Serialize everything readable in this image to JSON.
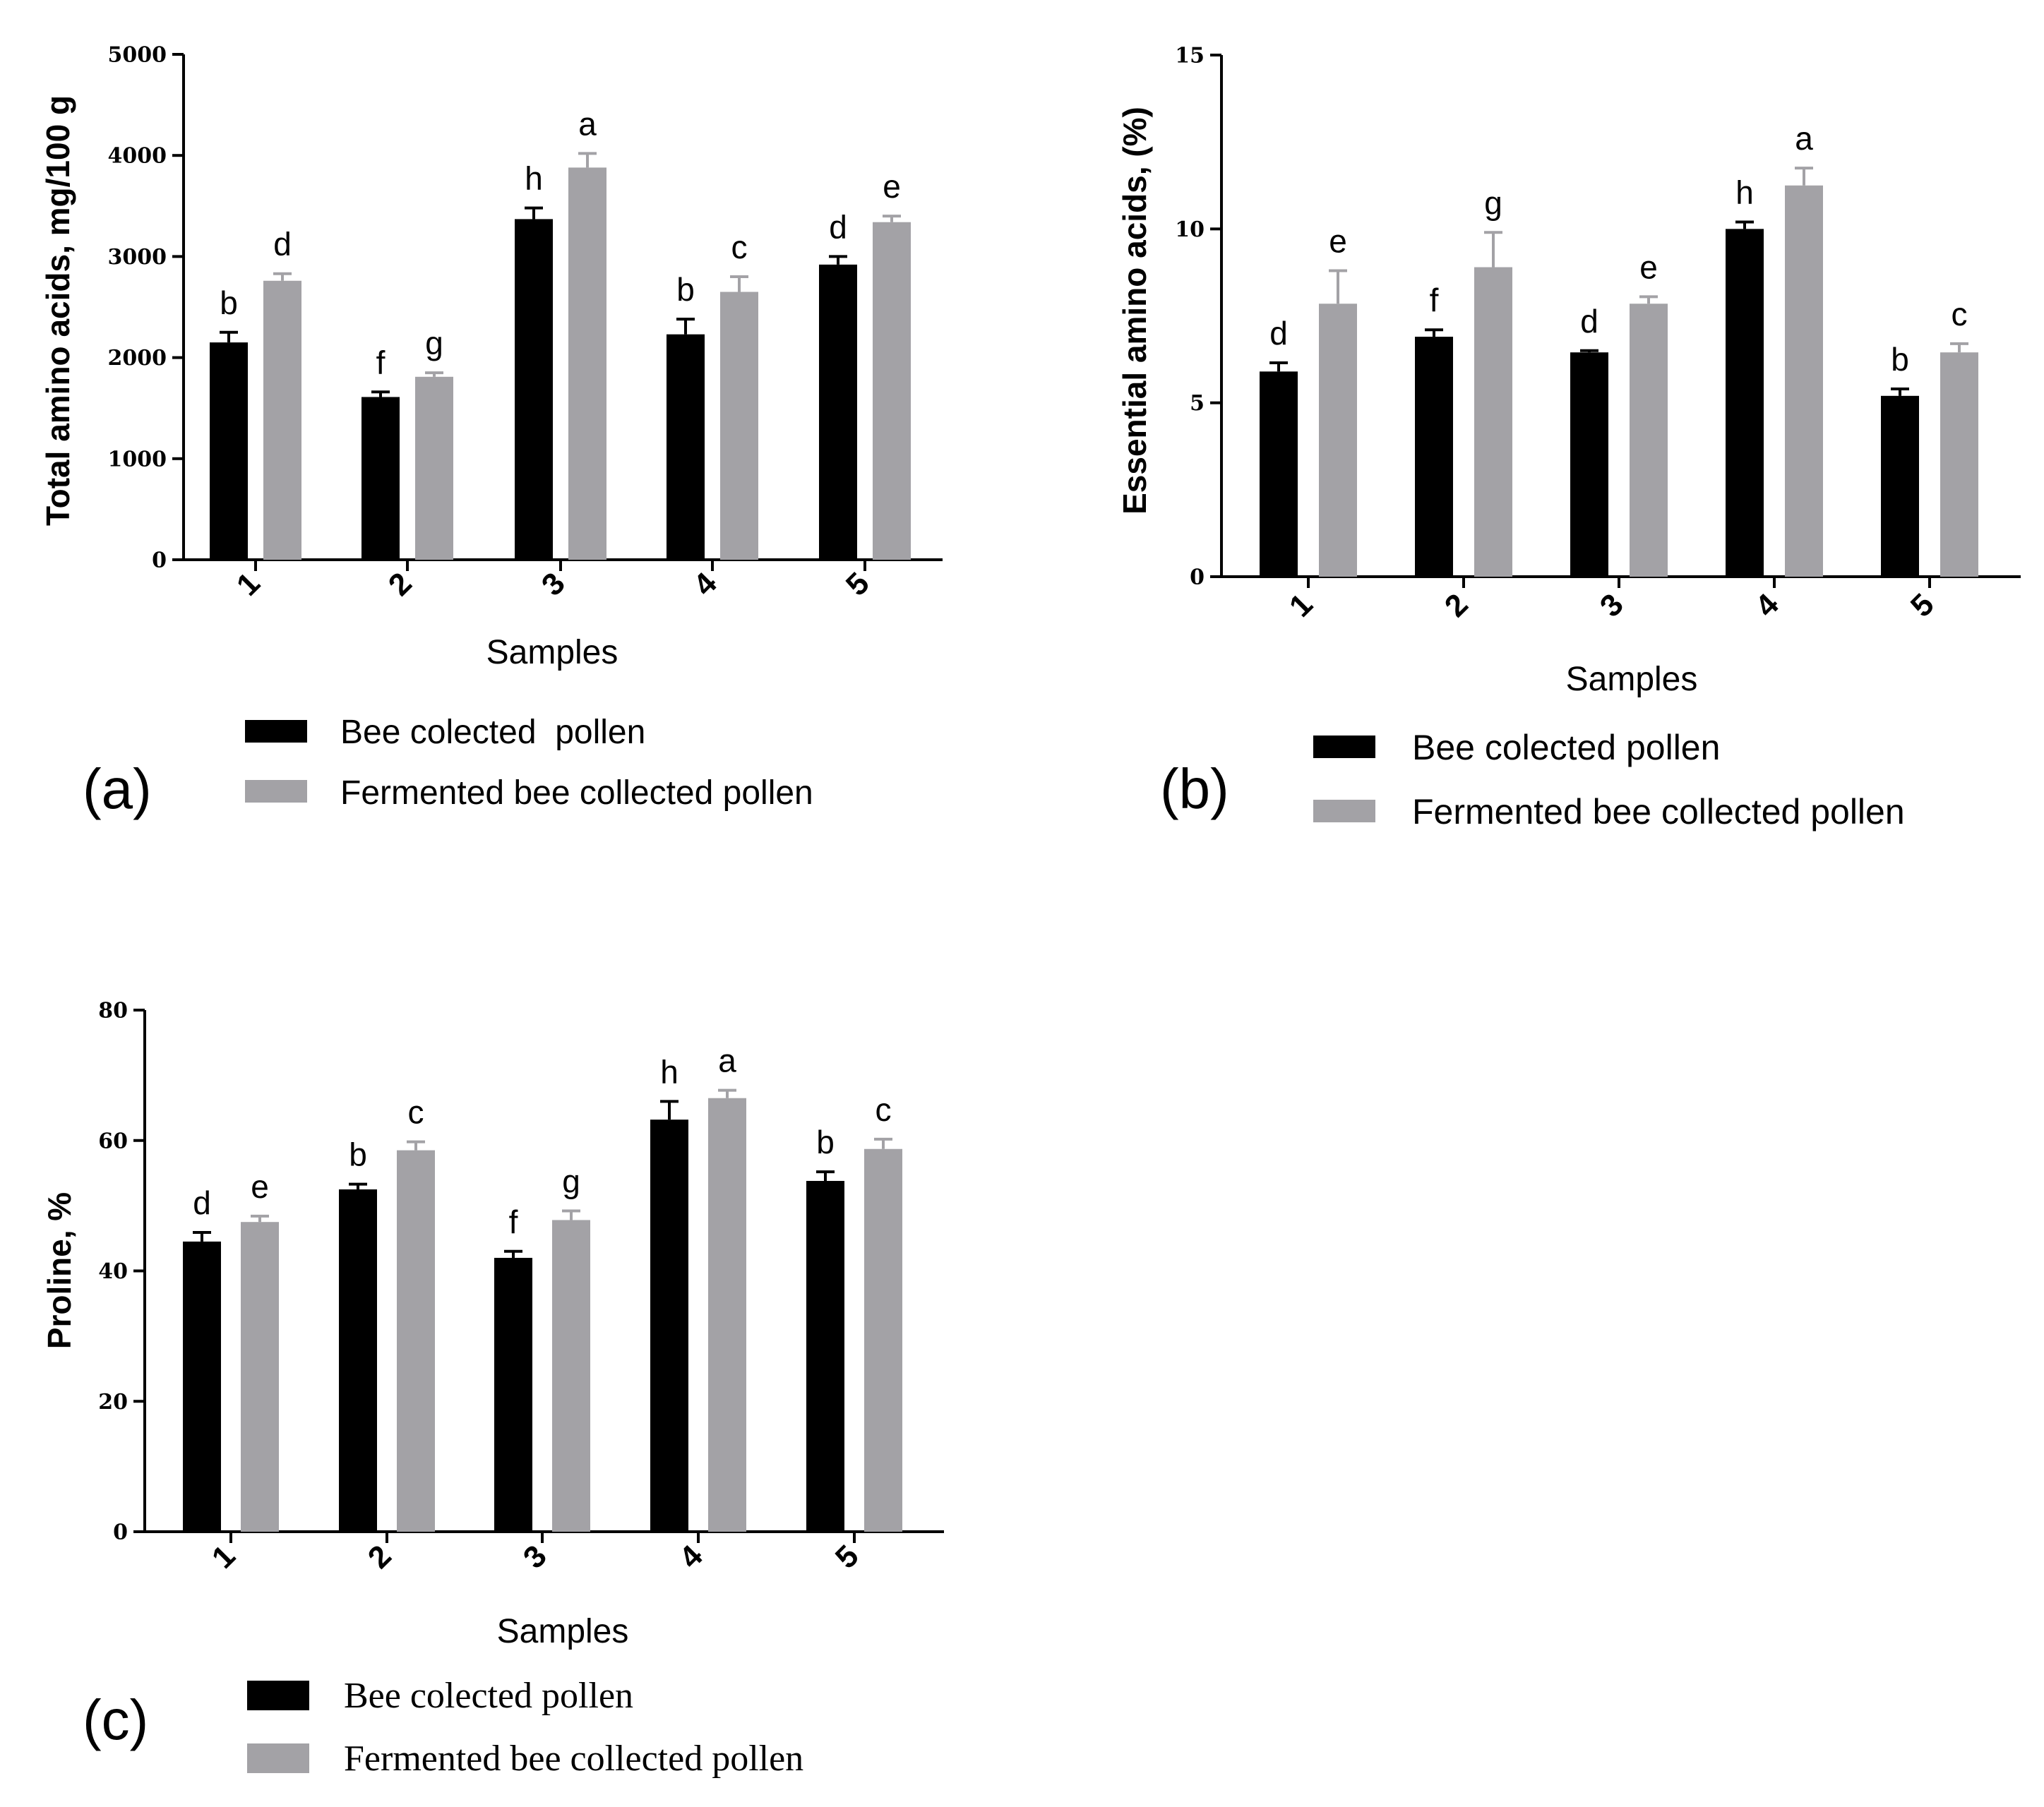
{
  "colors": {
    "bee": "#000000",
    "fermented": "#a3a2a6",
    "axis": "#000000"
  },
  "chart_data": [
    {
      "type": "bar",
      "panel_label": "(a)",
      "ylabel": "Total amino acids, mg/100 g",
      "xlabel": "Samples",
      "categories": [
        "1",
        "2",
        "3",
        "4",
        "5"
      ],
      "ylim": [
        0,
        5000
      ],
      "yticks": [
        0,
        1000,
        2000,
        3000,
        4000,
        5000
      ],
      "yticks_labels": [
        "0",
        "1000",
        "2000",
        "3000",
        "4000",
        "5000"
      ],
      "legend_position": "bottom",
      "grid": false,
      "series": [
        {
          "name": "Bee colected  pollen",
          "color_key": "bee",
          "values": [
            2150,
            1610,
            3370,
            2230,
            2920
          ],
          "errors": [
            100,
            50,
            110,
            150,
            80
          ],
          "letters": [
            "b",
            "f",
            "h",
            "b",
            "d"
          ]
        },
        {
          "name": "Fermented bee collected pollen",
          "color_key": "fermented",
          "values": [
            2760,
            1810,
            3880,
            2650,
            3340
          ],
          "errors": [
            70,
            40,
            140,
            150,
            60
          ],
          "letters": [
            "d",
            "g",
            "a",
            "c",
            "e"
          ]
        }
      ]
    },
    {
      "type": "bar",
      "panel_label": "(b)",
      "ylabel": "Essential amino acids, (%)",
      "xlabel": "Samples",
      "categories": [
        "1",
        "2",
        "3",
        "4",
        "5"
      ],
      "ylim": [
        0,
        15
      ],
      "yticks": [
        0,
        5,
        10,
        15
      ],
      "yticks_labels": [
        "0",
        "5",
        "10",
        "15"
      ],
      "legend_position": "bottom",
      "grid": false,
      "series": [
        {
          "name": "Bee colected pollen",
          "color_key": "bee",
          "values": [
            5.9,
            6.9,
            6.45,
            10.0,
            5.2
          ],
          "errors": [
            0.25,
            0.2,
            0.05,
            0.2,
            0.2
          ],
          "letters": [
            "d",
            "f",
            "d",
            "h",
            "b"
          ]
        },
        {
          "name": "Fermented bee collected pollen",
          "color_key": "fermented",
          "values": [
            7.85,
            8.9,
            7.85,
            11.25,
            6.45
          ],
          "errors": [
            0.95,
            1.0,
            0.2,
            0.5,
            0.25
          ],
          "letters": [
            "e",
            "g",
            "e",
            "a",
            "c"
          ]
        }
      ]
    },
    {
      "type": "bar",
      "panel_label": "(c)",
      "ylabel": "Proline, %",
      "xlabel": "Samples",
      "categories": [
        "1",
        "2",
        "3",
        "4",
        "5"
      ],
      "ylim": [
        0,
        80
      ],
      "yticks": [
        0,
        20,
        40,
        60,
        80
      ],
      "yticks_labels": [
        "0",
        "20",
        "40",
        "60",
        "80"
      ],
      "legend_position": "bottom",
      "grid": false,
      "series": [
        {
          "name": "Bee colected pollen",
          "color_key": "bee",
          "values": [
            44.5,
            52.5,
            42.0,
            63.2,
            53.8
          ],
          "errors": [
            1.4,
            0.8,
            1.0,
            2.8,
            1.4
          ],
          "letters": [
            "d",
            "b",
            "f",
            "h",
            "b"
          ]
        },
        {
          "name": "Fermented bee collected pollen",
          "color_key": "fermented",
          "values": [
            47.5,
            58.5,
            47.8,
            66.5,
            58.7
          ],
          "errors": [
            0.9,
            1.3,
            1.4,
            1.2,
            1.5
          ],
          "letters": [
            "e",
            "c",
            "g",
            "a",
            "c"
          ]
        }
      ]
    }
  ]
}
